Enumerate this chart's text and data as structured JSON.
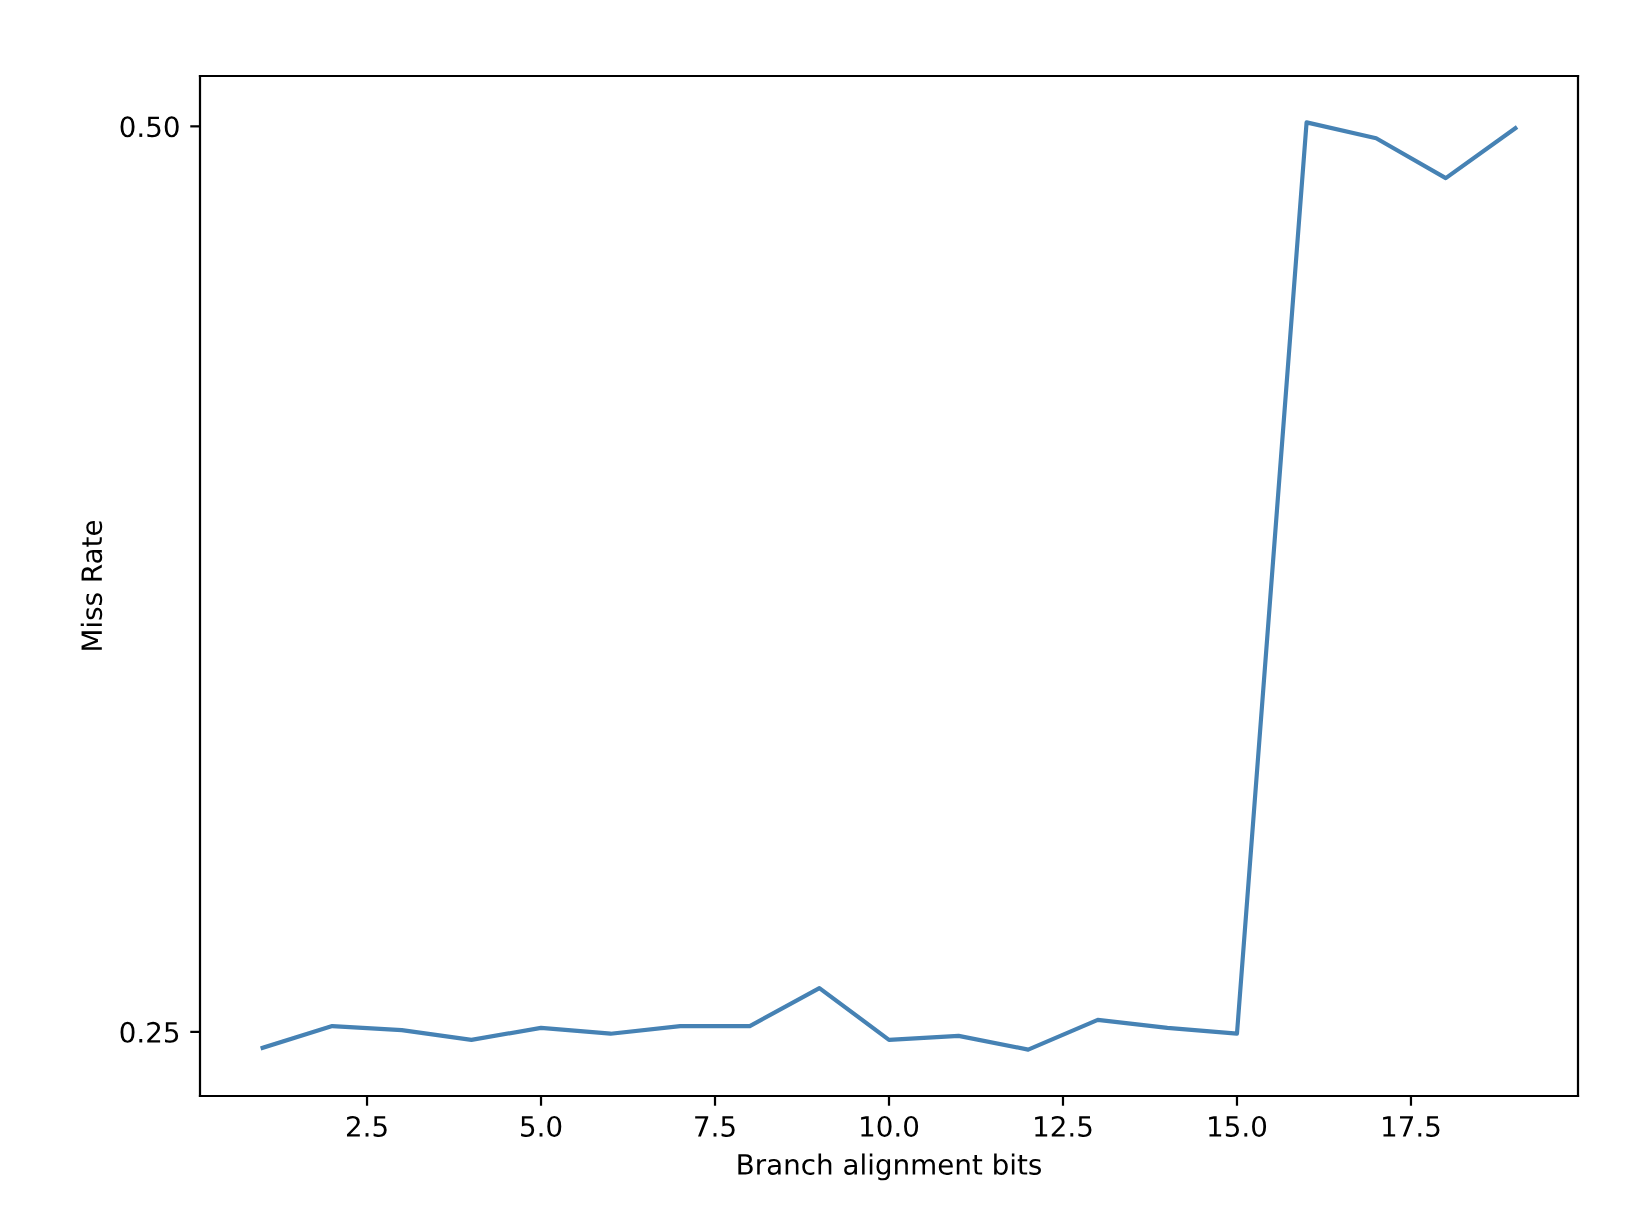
{
  "chart_data": {
    "type": "line",
    "xlabel": "Branch alignment bits",
    "ylabel": "Miss Rate",
    "x": [
      1,
      2,
      3,
      4,
      5,
      6,
      7,
      8,
      9,
      10,
      11,
      12,
      13,
      14,
      15,
      16,
      17,
      18,
      19
    ],
    "series": [
      {
        "color": "#4682b4",
        "values": [
          0.2456,
          0.2516,
          0.2505,
          0.2478,
          0.2511,
          0.2495,
          0.2516,
          0.2516,
          0.2621,
          0.2478,
          0.2489,
          0.2451,
          0.2533,
          0.2511,
          0.2495,
          0.5011,
          0.4967,
          0.4857,
          0.4995
        ]
      }
    ],
    "xlim": [
      0.1,
      19.9
    ],
    "ylim": [
      0.2323,
      0.5139
    ],
    "xticks": [
      {
        "value": 2.5,
        "label": "2.5"
      },
      {
        "value": 5,
        "label": "5.0"
      },
      {
        "value": 7.5,
        "label": "7.5"
      },
      {
        "value": 10,
        "label": "10.0"
      },
      {
        "value": 12.5,
        "label": "12.5"
      },
      {
        "value": 15,
        "label": "15.0"
      },
      {
        "value": 17.5,
        "label": "17.5"
      }
    ],
    "yticks": [
      {
        "value": 0.25,
        "label": "0.25"
      },
      {
        "value": 0.5,
        "label": "0.50"
      }
    ],
    "grid": false
  }
}
